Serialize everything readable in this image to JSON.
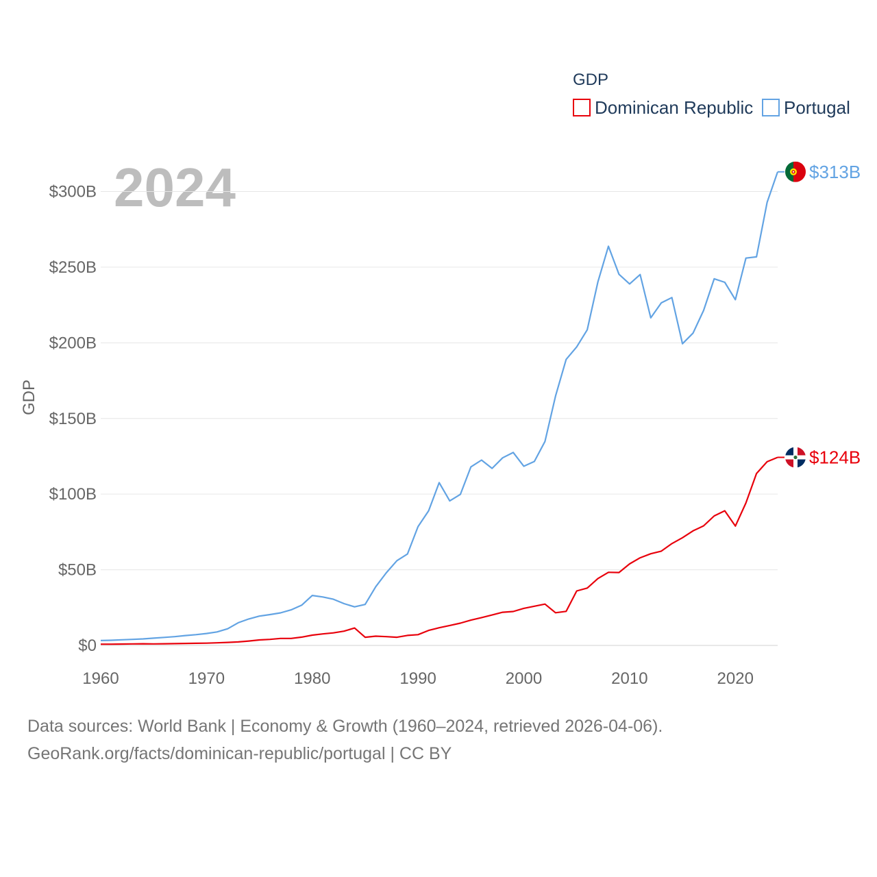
{
  "chart_data": {
    "type": "line",
    "legend_title": "GDP",
    "legend_position": "top-right",
    "ylabel": "GDP",
    "year_label": "2024",
    "xlim": [
      1960,
      2024
    ],
    "ylim": [
      0,
      313
    ],
    "x_ticks": [
      1960,
      1970,
      1980,
      1990,
      2000,
      2010,
      2020
    ],
    "y_ticks": [
      {
        "value": 0,
        "label": "$0"
      },
      {
        "value": 50,
        "label": "$50B"
      },
      {
        "value": 100,
        "label": "$100B"
      },
      {
        "value": 150,
        "label": "$150B"
      },
      {
        "value": 200,
        "label": "$200B"
      },
      {
        "value": 250,
        "label": "$250B"
      },
      {
        "value": 300,
        "label": "$300B"
      }
    ],
    "x": [
      1960,
      1961,
      1962,
      1963,
      1964,
      1965,
      1966,
      1967,
      1968,
      1969,
      1970,
      1971,
      1972,
      1973,
      1974,
      1975,
      1976,
      1977,
      1978,
      1979,
      1980,
      1981,
      1982,
      1983,
      1984,
      1985,
      1986,
      1987,
      1988,
      1989,
      1990,
      1991,
      1992,
      1993,
      1994,
      1995,
      1996,
      1997,
      1998,
      1999,
      2000,
      2001,
      2002,
      2003,
      2004,
      2005,
      2006,
      2007,
      2008,
      2009,
      2010,
      2011,
      2012,
      2013,
      2014,
      2015,
      2016,
      2017,
      2018,
      2019,
      2020,
      2021,
      2022,
      2023,
      2024
    ],
    "series": [
      {
        "name": "Dominican Republic",
        "color": "#e8000b",
        "end_label": "$124B",
        "flag": "dominican-republic-flag-icon",
        "values": [
          0.8,
          0.8,
          0.9,
          1.0,
          1.1,
          1.0,
          1.1,
          1.2,
          1.3,
          1.4,
          1.5,
          1.7,
          2.0,
          2.3,
          2.9,
          3.6,
          4.0,
          4.6,
          4.6,
          5.5,
          6.8,
          7.6,
          8.3,
          9.4,
          11.5,
          5.4,
          6.1,
          5.8,
          5.4,
          6.6,
          7.1,
          9.9,
          11.7,
          13.2,
          14.7,
          16.7,
          18.4,
          20.1,
          21.9,
          22.4,
          24.5,
          25.9,
          27.3,
          21.6,
          22.5,
          36.0,
          37.9,
          44.2,
          48.3,
          48.2,
          53.9,
          57.9,
          60.6,
          62.3,
          67.3,
          71.2,
          75.7,
          79.0,
          85.6,
          89.0,
          78.9,
          94.2,
          113.6,
          121.4,
          124.3
        ]
      },
      {
        "name": "Portugal",
        "color": "#62a3e3",
        "end_label": "$313B",
        "flag": "portugal-flag-icon",
        "values": [
          3.2,
          3.4,
          3.7,
          4.0,
          4.3,
          4.8,
          5.3,
          5.8,
          6.5,
          7.1,
          7.9,
          8.9,
          11.0,
          15.0,
          17.5,
          19.4,
          20.4,
          21.5,
          23.5,
          26.6,
          33.0,
          32.0,
          30.5,
          27.6,
          25.5,
          27.1,
          38.8,
          48.0,
          56.0,
          60.4,
          78.5,
          89.0,
          107.6,
          95.5,
          99.8,
          118.0,
          122.5,
          117.0,
          124.0,
          127.5,
          118.4,
          121.6,
          134.8,
          164.8,
          189.0,
          197.3,
          208.6,
          240.2,
          263.8,
          245.3,
          238.9,
          245.1,
          216.5,
          226.4,
          229.9,
          199.4,
          206.4,
          221.4,
          242.3,
          240.0,
          228.5,
          256.0,
          256.8,
          292.8,
          313.0
        ]
      }
    ]
  },
  "footer": {
    "line1": "Data sources: World Bank | Economy & Growth (1960–2024, retrieved 2026-04-06).",
    "line2": "GeoRank.org/facts/dominican-republic/portugal | CC BY"
  }
}
